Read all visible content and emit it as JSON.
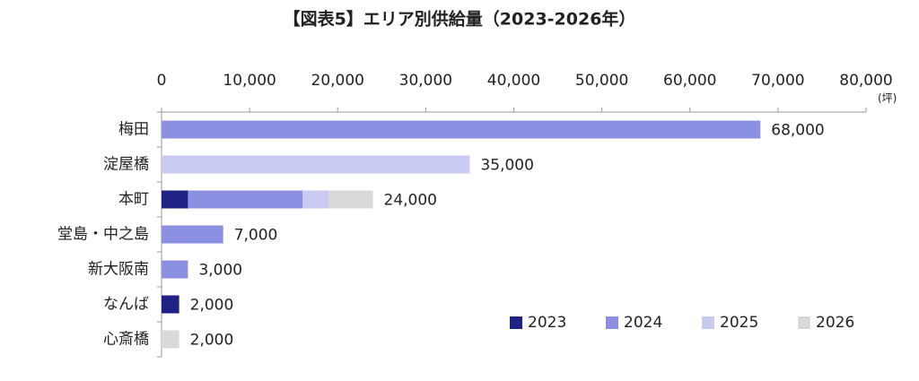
{
  "chart_data": {
    "type": "stacked-bar-horizontal",
    "title": "【図表5】エリア別供給量（2023-2026年）",
    "x_unit": "(坪)",
    "categories": [
      "梅田",
      "淀屋橋",
      "本町",
      "堂島・中之島",
      "新大阪南",
      "なんば",
      "心斎橋"
    ],
    "series": [
      {
        "name": "2023",
        "color": "#1f2385",
        "values": [
          null,
          null,
          3000,
          null,
          null,
          2000,
          null
        ]
      },
      {
        "name": "2024",
        "color": "#8c90e2",
        "values": [
          68000,
          null,
          13000,
          7000,
          3000,
          null,
          null
        ]
      },
      {
        "name": "2025",
        "color": "#c9caf2",
        "values": [
          null,
          35000,
          3000,
          null,
          null,
          null,
          null
        ]
      },
      {
        "name": "2026",
        "color": "#d9d9d9",
        "values": [
          null,
          null,
          5000,
          null,
          null,
          null,
          2000
        ]
      }
    ],
    "totals": [
      68000,
      35000,
      24000,
      7000,
      3000,
      2000,
      2000
    ],
    "total_labels": [
      "68,000",
      "35,000",
      "24,000",
      "7,000",
      "3,000",
      "2,000",
      "2,000"
    ],
    "xlim": [
      0,
      80000
    ],
    "xticks": [
      0,
      {
        "value": 10000,
        "label": "10,000"
      },
      {
        "value": 20000,
        "label": "20,000"
      },
      {
        "value": 30000,
        "label": "30,000"
      },
      {
        "value": 40000,
        "label": "40,000"
      },
      {
        "value": 50000,
        "label": "50,000"
      },
      {
        "value": 60000,
        "label": "60,000"
      },
      {
        "value": 70000,
        "label": "70,000"
      },
      {
        "value": 80000,
        "label": "80,000"
      }
    ],
    "legend": "bottom-right"
  }
}
